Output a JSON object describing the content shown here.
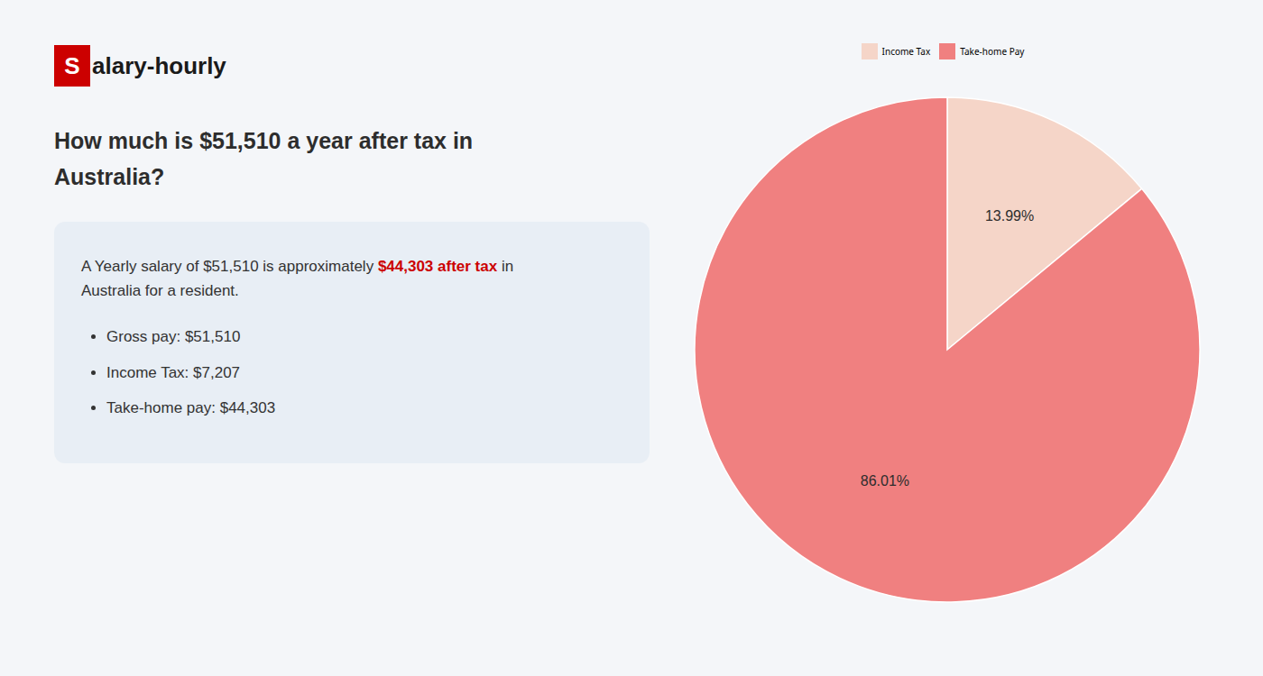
{
  "chart_data": {
    "type": "pie",
    "title": "How much is $51,510 a year after tax in Australia?",
    "categories": [
      "Income Tax",
      "Take-home Pay"
    ],
    "values": [
      13.99,
      86.01
    ],
    "value_labels": [
      "13.99%",
      "86.01%"
    ],
    "colors": [
      "#f5d5c8",
      "#f08080"
    ],
    "data_labels": true,
    "legend": "top",
    "annotations": [
      {
        "text": "S",
        "color": "#cc0000"
      },
      {
        "text": "alary-hourly",
        "color": "#1a1a1a"
      },
      {
        "text": "A Yearly salary of $51,510 is approximately ",
        "color": "#333333"
      },
      {
        "text": "$44,303 after tax",
        "color": "#cc0000"
      },
      {
        "text": " in",
        "color": "#333333"
      },
      {
        "text": "Australia for a resident.",
        "color": "#333333"
      },
      {
        "text": "Gross pay: $51,510",
        "color": "#333333"
      },
      {
        "text": "Income Tax: $7,207",
        "color": "#333333"
      },
      {
        "text": "Take-home pay: $44,303",
        "color": "#333333"
      }
    ]
  }
}
